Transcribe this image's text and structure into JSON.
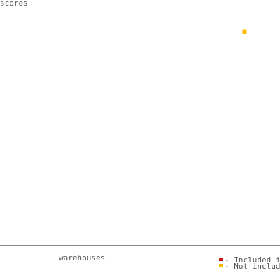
{
  "chart_data": {
    "type": "scatter",
    "title": "",
    "xlabel": "warehouses",
    "ylabel": "scores",
    "xlim": [
      0,
      100
    ],
    "ylim": [
      0,
      100
    ],
    "grid": false,
    "legend_position": "bottom-right",
    "series": [
      {
        "name": "- Included in",
        "color": "#cc1111",
        "points": []
      },
      {
        "name": "- Not included",
        "color": "#ffbb00",
        "points": [
          {
            "x": 86,
            "y": 87
          }
        ]
      }
    ]
  }
}
